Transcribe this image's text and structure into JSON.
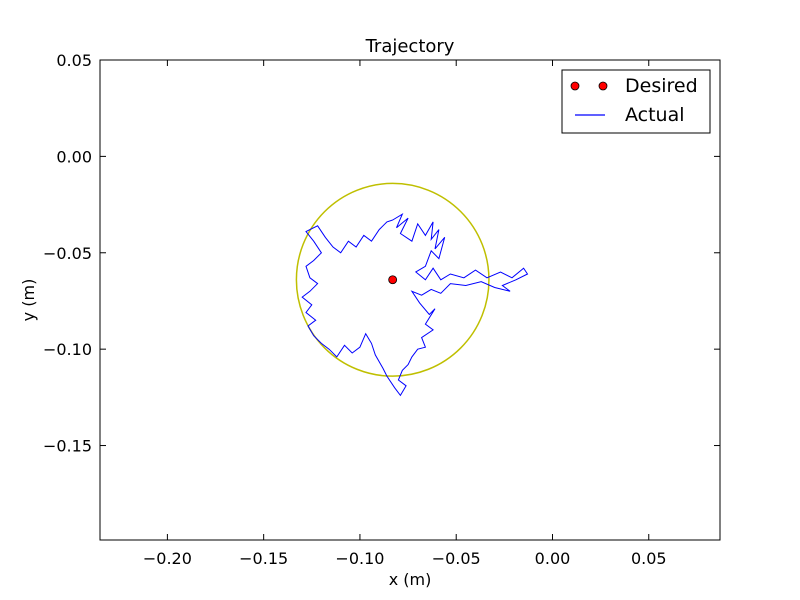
{
  "chart_data": {
    "type": "line",
    "title": "Trajectory",
    "xlabel": "x (m)",
    "ylabel": "y (m)",
    "xlim": [
      -0.235,
      0.087
    ],
    "ylim": [
      -0.199,
      0.05
    ],
    "xticks": [
      -0.2,
      -0.15,
      -0.1,
      -0.05,
      0.0,
      0.05
    ],
    "xtick_labels": [
      "−0.20",
      "−0.15",
      "−0.10",
      "−0.05",
      "0.00",
      "0.05"
    ],
    "yticks": [
      0.05,
      0.0,
      -0.05,
      -0.1,
      -0.15
    ],
    "ytick_labels": [
      "0.05",
      "0.00",
      "−0.05",
      "−0.10",
      "−0.15"
    ],
    "grid": false,
    "legend_position": "top-right",
    "colors": {
      "desired": "#ff0000",
      "actual": "#0000ff",
      "circle": "#bfbf00"
    },
    "series": [
      {
        "name": "Desired",
        "kind": "marker",
        "points": [
          [
            -0.083,
            -0.064
          ]
        ]
      },
      {
        "name": "Actual",
        "kind": "line",
        "points": [
          [
            -0.083,
            -0.033
          ],
          [
            -0.078,
            -0.03
          ],
          [
            -0.081,
            -0.037
          ],
          [
            -0.075,
            -0.032
          ],
          [
            -0.079,
            -0.04
          ],
          [
            -0.073,
            -0.044
          ],
          [
            -0.07,
            -0.035
          ],
          [
            -0.066,
            -0.041
          ],
          [
            -0.062,
            -0.034
          ],
          [
            -0.063,
            -0.043
          ],
          [
            -0.059,
            -0.038
          ],
          [
            -0.061,
            -0.048
          ],
          [
            -0.056,
            -0.042
          ],
          [
            -0.059,
            -0.053
          ],
          [
            -0.063,
            -0.049
          ],
          [
            -0.066,
            -0.057
          ],
          [
            -0.071,
            -0.06
          ],
          [
            -0.066,
            -0.064
          ],
          [
            -0.062,
            -0.058
          ],
          [
            -0.058,
            -0.064
          ],
          [
            -0.053,
            -0.061
          ],
          [
            -0.046,
            -0.063
          ],
          [
            -0.04,
            -0.059
          ],
          [
            -0.034,
            -0.063
          ],
          [
            -0.027,
            -0.06
          ],
          [
            -0.021,
            -0.063
          ],
          [
            -0.015,
            -0.058
          ],
          [
            -0.013,
            -0.061
          ],
          [
            -0.019,
            -0.064
          ],
          [
            -0.026,
            -0.067
          ],
          [
            -0.022,
            -0.07
          ],
          [
            -0.03,
            -0.068
          ],
          [
            -0.037,
            -0.065
          ],
          [
            -0.045,
            -0.067
          ],
          [
            -0.053,
            -0.066
          ],
          [
            -0.058,
            -0.071
          ],
          [
            -0.063,
            -0.069
          ],
          [
            -0.068,
            -0.072
          ],
          [
            -0.073,
            -0.07
          ],
          [
            -0.069,
            -0.076
          ],
          [
            -0.064,
            -0.082
          ],
          [
            -0.061,
            -0.079
          ],
          [
            -0.066,
            -0.087
          ],
          [
            -0.062,
            -0.09
          ],
          [
            -0.068,
            -0.094
          ],
          [
            -0.066,
            -0.099
          ],
          [
            -0.07,
            -0.1
          ],
          [
            -0.073,
            -0.104
          ],
          [
            -0.075,
            -0.108
          ],
          [
            -0.078,
            -0.111
          ],
          [
            -0.08,
            -0.116
          ],
          [
            -0.076,
            -0.119
          ],
          [
            -0.079,
            -0.124
          ],
          [
            -0.082,
            -0.12
          ],
          [
            -0.086,
            -0.114
          ],
          [
            -0.088,
            -0.11
          ],
          [
            -0.092,
            -0.103
          ],
          [
            -0.094,
            -0.097
          ],
          [
            -0.097,
            -0.092
          ],
          [
            -0.1,
            -0.099
          ],
          [
            -0.104,
            -0.102
          ],
          [
            -0.108,
            -0.098
          ],
          [
            -0.112,
            -0.104
          ],
          [
            -0.116,
            -0.1
          ],
          [
            -0.12,
            -0.097
          ],
          [
            -0.124,
            -0.093
          ],
          [
            -0.127,
            -0.088
          ],
          [
            -0.123,
            -0.085
          ],
          [
            -0.128,
            -0.081
          ],
          [
            -0.125,
            -0.077
          ],
          [
            -0.13,
            -0.073
          ],
          [
            -0.126,
            -0.07
          ],
          [
            -0.122,
            -0.066
          ],
          [
            -0.126,
            -0.063
          ],
          [
            -0.128,
            -0.057
          ],
          [
            -0.124,
            -0.054
          ],
          [
            -0.12,
            -0.05
          ],
          [
            -0.124,
            -0.044
          ],
          [
            -0.128,
            -0.039
          ],
          [
            -0.122,
            -0.036
          ],
          [
            -0.118,
            -0.042
          ],
          [
            -0.114,
            -0.047
          ],
          [
            -0.11,
            -0.05
          ],
          [
            -0.106,
            -0.044
          ],
          [
            -0.102,
            -0.047
          ],
          [
            -0.098,
            -0.041
          ],
          [
            -0.094,
            -0.044
          ],
          [
            -0.09,
            -0.038
          ],
          [
            -0.086,
            -0.034
          ],
          [
            -0.083,
            -0.033
          ]
        ]
      }
    ],
    "reference_circle": {
      "center": [
        -0.083,
        -0.064
      ],
      "radius": 0.05
    },
    "legend": [
      {
        "label": "Desired",
        "kind": "marker",
        "color": "#ff0000"
      },
      {
        "label": "Actual",
        "kind": "line",
        "color": "#0000ff"
      }
    ]
  }
}
